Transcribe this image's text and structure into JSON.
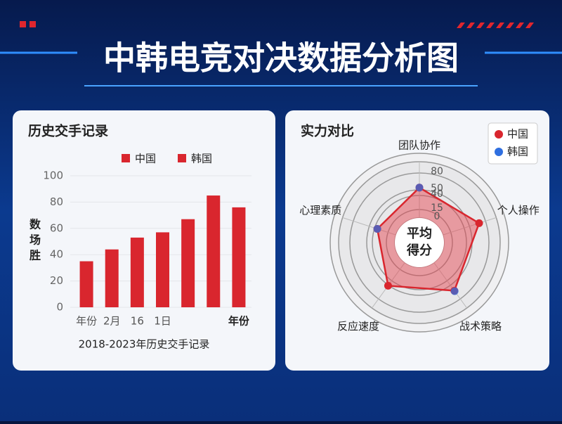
{
  "title": "中韩电竞对决数据分析图",
  "chart_data": [
    {
      "type": "bar",
      "title": "历史交手记录",
      "x_label": "2018-2023年历史交手记录",
      "y_label": "数场胜",
      "legend": [
        {
          "name": "中国",
          "color": "#d9262e"
        },
        {
          "name": "韩国",
          "color": "#d9262e"
        }
      ],
      "categories": [
        "年份",
        "2月",
        "16",
        "1日",
        null,
        null,
        "年份"
      ],
      "series": [
        {
          "name": "中国",
          "color": "#d9262e",
          "values": [
            35,
            44,
            53,
            57,
            67,
            85,
            76
          ]
        }
      ],
      "ylim": [
        0,
        100
      ],
      "yticks": [
        0,
        20,
        40,
        60,
        80,
        100
      ],
      "grid": true
    },
    {
      "type": "radar",
      "title": "实力对比",
      "center_label": "平均得分",
      "categories": [
        "团队协作",
        "个人操作",
        "战术策略",
        "反应速度",
        "心理素质"
      ],
      "series": [
        {
          "name": "中国",
          "color": "#d9262e",
          "values": [
            54,
            68,
            62,
            51,
            35
          ]
        },
        {
          "name": "韩国",
          "color": "#2f6fe0",
          "values": [
            54,
            null,
            63,
            null,
            35
          ]
        }
      ],
      "rlim": [
        0,
        100
      ],
      "rticks": [
        0,
        15,
        40,
        50,
        80
      ],
      "legend_position": "upper right"
    }
  ]
}
